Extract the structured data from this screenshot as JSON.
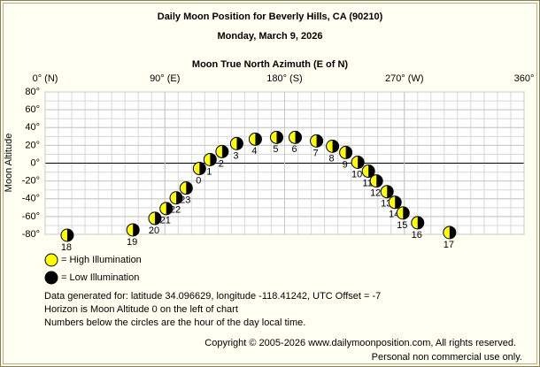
{
  "chart_data": {
    "type": "scatter",
    "title": "Daily Moon Position for Beverly Hills, CA (90210)",
    "subtitle": "Monday, March 9, 2026",
    "x_label": "Moon True North Azimuth (E of N)",
    "y_label": "Moon Altitude",
    "xlim": [
      0,
      360
    ],
    "xticks": [
      {
        "value": 0,
        "label": "0° (N)"
      },
      {
        "value": 90,
        "label": "90° (E)"
      },
      {
        "value": 180,
        "label": "180° (S)"
      },
      {
        "value": 270,
        "label": "270° (W)"
      },
      {
        "value": 360,
        "label": "360°"
      }
    ],
    "ylim": [
      -80,
      80
    ],
    "yticks": [
      {
        "value": 80,
        "label": "80°"
      },
      {
        "value": 60,
        "label": "60°"
      },
      {
        "value": 40,
        "label": "40°"
      },
      {
        "value": 20,
        "label": "20°"
      },
      {
        "value": 0,
        "label": "0°"
      },
      {
        "value": -20,
        "label": "-20°"
      },
      {
        "value": -40,
        "label": "-40°"
      },
      {
        "value": -60,
        "label": "-60°"
      },
      {
        "value": -80,
        "label": "-80°"
      }
    ],
    "grid": true,
    "series": [
      {
        "name": "= High Illumination",
        "color": "#ffff00",
        "labels": [
          "18",
          "19",
          "20",
          "21",
          "22",
          "23",
          "0",
          "1",
          "2",
          "3",
          "4",
          "5",
          "6",
          "7",
          "8",
          "9",
          "10",
          "11",
          "12",
          "13",
          "14",
          "15",
          "16",
          "17"
        ],
        "x": [
          16.6,
          66,
          82.5,
          91,
          98.5,
          106,
          116,
          124,
          133,
          144,
          158,
          174,
          188,
          204,
          216,
          226,
          235,
          243,
          249,
          257,
          263,
          269,
          280,
          304
        ],
        "y": [
          -81,
          -75,
          -62,
          -51,
          -39,
          -28,
          -6,
          4,
          13,
          22,
          27,
          29,
          29,
          25,
          19,
          12,
          1,
          -9,
          -20,
          -32,
          -44,
          -56,
          -67,
          -78
        ]
      },
      {
        "name": "= Low Illumination",
        "color": "#000000",
        "x": [],
        "y": []
      }
    ],
    "notes": [
      "Data generated for: latitude 34.096629, longitude -118.41242, UTC Offset = -7",
      "Horizon is Moon Altitude 0 on the left of chart",
      "Numbers below the circles are the hour of the day local time."
    ],
    "copyright": [
      "Copyright © 2005-2026 www.dailymoonposition.com, All rights reserved.",
      "Personal non commercial use only."
    ]
  }
}
